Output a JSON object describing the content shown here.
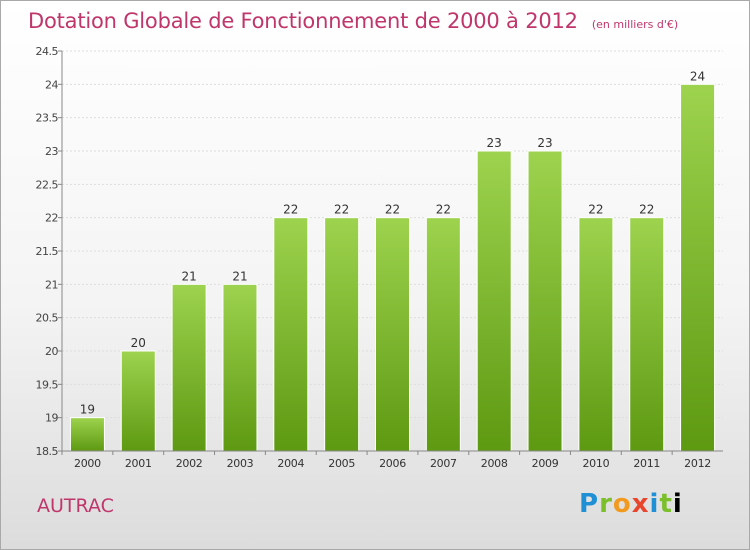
{
  "header": {
    "title": "Dotation Globale de Fonctionnement de 2000 à 2012",
    "unit": "(en milliers d'€)"
  },
  "footer": {
    "town": "AUTRAC",
    "logo": [
      "P",
      "r",
      "o",
      "x",
      "i",
      "t",
      "i"
    ]
  },
  "colors": {
    "title": "#c0366a",
    "bar_top": "#9dd34e",
    "bar_bottom": "#5e9912",
    "axis": "#888888",
    "grid": "#dddddd"
  },
  "chart_data": {
    "type": "bar",
    "title": "Dotation Globale de Fonctionnement de 2000 à 2012",
    "subtitle": "(en milliers d'€)",
    "categories": [
      "2000",
      "2001",
      "2002",
      "2003",
      "2004",
      "2005",
      "2006",
      "2007",
      "2008",
      "2009",
      "2010",
      "2011",
      "2012"
    ],
    "values": [
      19,
      20,
      21,
      21,
      22,
      22,
      22,
      22,
      23,
      23,
      22,
      22,
      24
    ],
    "data_labels": [
      "19",
      "20",
      "21",
      "21",
      "22",
      "22",
      "22",
      "22",
      "23",
      "23",
      "22",
      "22",
      "24"
    ],
    "ylim": [
      18.5,
      24.5
    ],
    "yticks": [
      18.5,
      19,
      19.5,
      20,
      20.5,
      21,
      21.5,
      22,
      22.5,
      23,
      23.5,
      24,
      24.5
    ],
    "ytick_labels": [
      "18.5",
      "19",
      "19.5",
      "20",
      "20.5",
      "21",
      "21.5",
      "22",
      "22.5",
      "23",
      "23.5",
      "24",
      "24.5"
    ],
    "xlabel": "",
    "ylabel": "",
    "grid": true,
    "legend": "none"
  }
}
